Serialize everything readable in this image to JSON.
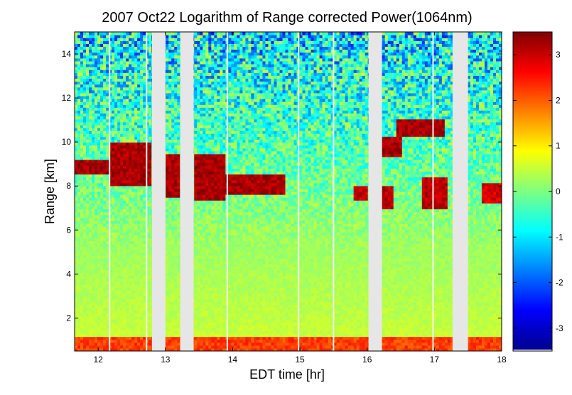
{
  "chart_data": {
    "type": "heatmap",
    "title": "2007 Oct22  Logarithm of Range corrected Power(1064nm)",
    "xlabel": "EDT time [hr]",
    "ylabel": "Range [km]",
    "xlim": [
      11.65,
      18.0
    ],
    "ylim": [
      0.5,
      15.0
    ],
    "xticks": [
      12,
      13,
      14,
      15,
      16,
      17,
      18
    ],
    "yticks": [
      2,
      4,
      6,
      8,
      10,
      12,
      14
    ],
    "colorbar": {
      "colormap": "jet",
      "clim": [
        -3.5,
        3.5
      ],
      "ticks": [
        -3,
        -2,
        -1,
        0,
        1,
        2,
        3
      ]
    },
    "data_gaps_hr": [
      [
        12.8,
        13.0
      ],
      [
        13.22,
        13.42
      ],
      [
        16.02,
        16.22
      ],
      [
        17.27,
        17.5
      ]
    ],
    "thin_gaps_hr": [
      12.17,
      12.72,
      13.92,
      14.98,
      15.5,
      16.98
    ],
    "features": [
      {
        "name": "cloud",
        "t": [
          11.65,
          12.15
        ],
        "z": [
          8.5,
          9.2
        ],
        "value": 3.5
      },
      {
        "name": "cloud",
        "t": [
          12.15,
          12.8
        ],
        "z": [
          8.0,
          10.0
        ],
        "value": 3.5
      },
      {
        "name": "cloud",
        "t": [
          13.0,
          13.22
        ],
        "z": [
          7.5,
          9.5
        ],
        "value": 3.5
      },
      {
        "name": "cloud",
        "t": [
          13.42,
          13.9
        ],
        "z": [
          7.4,
          9.5
        ],
        "value": 3.5
      },
      {
        "name": "cloud",
        "t": [
          13.9,
          14.8
        ],
        "z": [
          7.6,
          8.6
        ],
        "value": 3.5
      },
      {
        "name": "cloud",
        "t": [
          15.8,
          16.0
        ],
        "z": [
          7.3,
          8.0
        ],
        "value": 3.3
      },
      {
        "name": "cloud",
        "t": [
          16.22,
          16.5
        ],
        "z": [
          9.3,
          10.2
        ],
        "value": 3.5
      },
      {
        "name": "cloud",
        "t": [
          16.22,
          16.4
        ],
        "z": [
          7.0,
          8.0
        ],
        "value": 3.4
      },
      {
        "name": "cloud",
        "t": [
          16.42,
          17.15
        ],
        "z": [
          10.2,
          11.0
        ],
        "value": 3.5
      },
      {
        "name": "cloud",
        "t": [
          16.8,
          17.2
        ],
        "z": [
          7.0,
          8.4
        ],
        "value": 3.4
      },
      {
        "name": "cloud",
        "t": [
          17.7,
          18.0
        ],
        "z": [
          7.2,
          8.2
        ],
        "value": 3.2
      },
      {
        "name": "boundary-layer",
        "t": [
          11.65,
          18.0
        ],
        "z": [
          0.5,
          1.1
        ],
        "value": 2.5
      }
    ]
  }
}
